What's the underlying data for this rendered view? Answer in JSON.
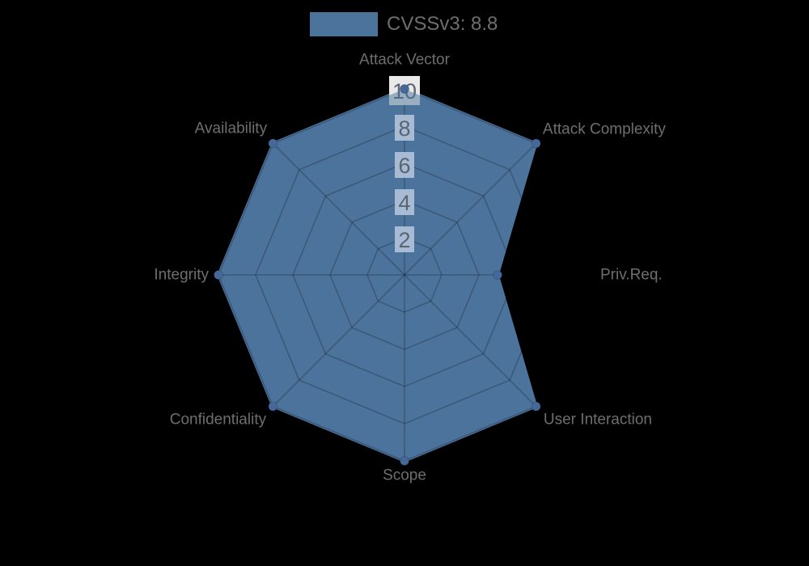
{
  "chart_data": {
    "type": "radar",
    "title": "",
    "legend": {
      "label": "CVSSv3: 8.8",
      "position": "top"
    },
    "categories": [
      "Attack Vector",
      "Attack Complexity",
      "Priv.Req.",
      "User Interaction",
      "Scope",
      "Confidentiality",
      "Integrity",
      "Availability"
    ],
    "series": [
      {
        "name": "CVSSv3: 8.8",
        "values": [
          10,
          10,
          5,
          10,
          10,
          10,
          10,
          10
        ]
      }
    ],
    "scale": {
      "min": 0,
      "max": 10,
      "tick_step": 2,
      "ticks": [
        2,
        4,
        6,
        8,
        10
      ],
      "grid": true,
      "grid_shape": "polygon"
    },
    "colors": {
      "background": "#000000",
      "series_fill": "#4C739C",
      "series_border": "#4C739C",
      "point": "#45689A",
      "grid_line": "rgba(0,0,0,0.22)",
      "tick_backdrop_inside": "#A7BCD4",
      "tick_backdrop_outside": "#E9E9E9",
      "tick_text": "#5A6470",
      "axis_label_text": "#6E6E6E",
      "legend_text": "#6E6E6E"
    }
  }
}
